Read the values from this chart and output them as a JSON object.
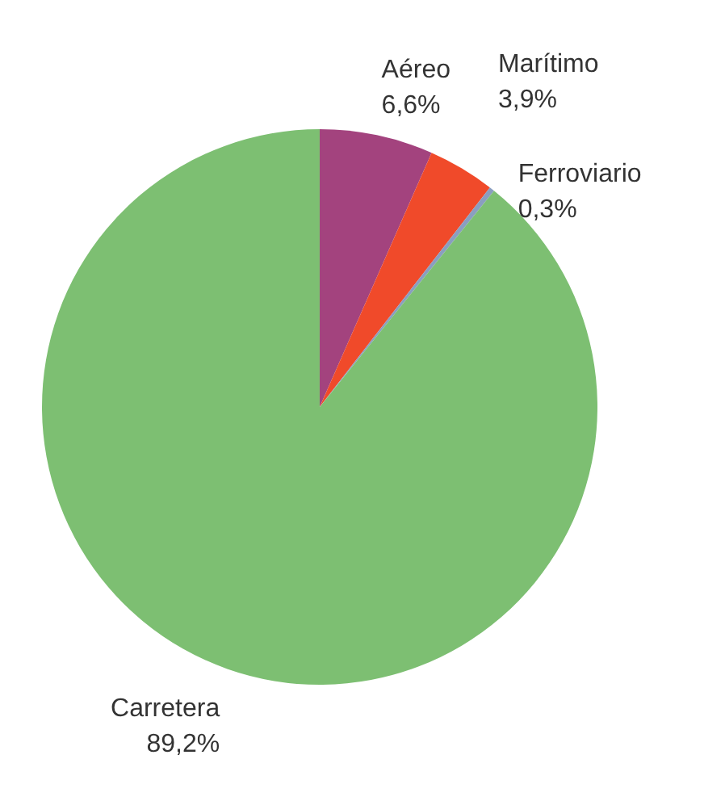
{
  "chart_data": {
    "type": "pie",
    "categories": [
      "Aéreo",
      "Marítimo",
      "Ferroviario",
      "Carretera"
    ],
    "values": [
      6.6,
      3.9,
      0.3,
      89.2
    ],
    "colors": [
      "#a3437e",
      "#f04a2a",
      "#8a9ec0",
      "#7dbf72"
    ],
    "value_labels": [
      "6,6%",
      "3,9%",
      "0,3%",
      "89,2%"
    ],
    "legend": false
  }
}
